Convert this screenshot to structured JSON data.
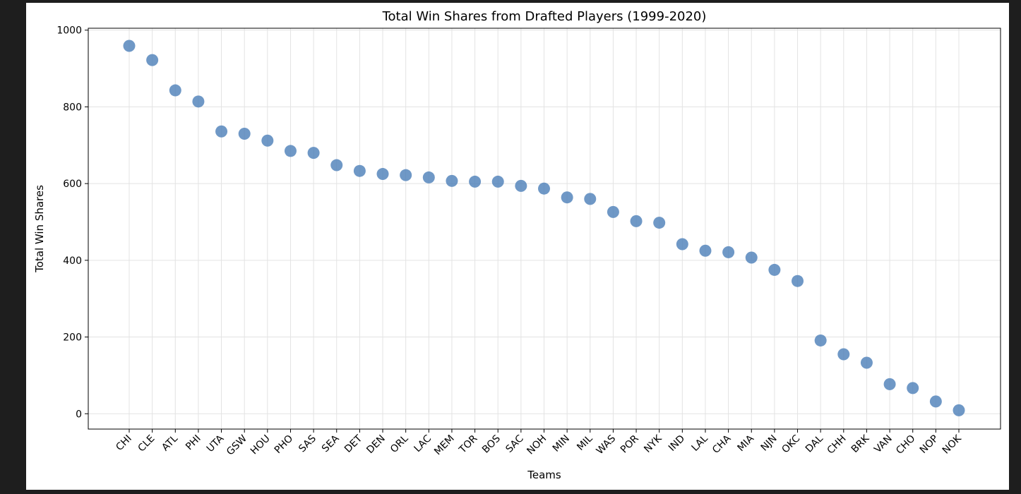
{
  "chart_data": {
    "type": "scatter",
    "title": "Total Win Shares from Drafted Players (1999-2020)",
    "xlabel": "Teams",
    "ylabel": "Total Win Shares",
    "ylim": [
      -40,
      1005
    ],
    "yticks": [
      0,
      200,
      400,
      600,
      800,
      1000
    ],
    "grid": true,
    "marker_color": "#4f81b9",
    "categories": [
      "CHI",
      "CLE",
      "ATL",
      "PHI",
      "UTA",
      "GSW",
      "HOU",
      "PHO",
      "SAS",
      "SEA",
      "DET",
      "DEN",
      "ORL",
      "LAC",
      "MEM",
      "TOR",
      "BOS",
      "SAC",
      "NOH",
      "MIN",
      "MIL",
      "WAS",
      "POR",
      "NYK",
      "IND",
      "LAL",
      "CHA",
      "MIA",
      "NJN",
      "OKC",
      "DAL",
      "CHH",
      "BRK",
      "VAN",
      "CHO",
      "NOP",
      "NOK"
    ],
    "values": [
      959,
      922,
      843,
      814,
      736,
      730,
      712,
      685,
      680,
      648,
      633,
      625,
      622,
      616,
      607,
      605,
      605,
      594,
      587,
      564,
      560,
      526,
      502,
      498,
      442,
      425,
      421,
      407,
      375,
      346,
      191,
      155,
      133,
      77,
      67,
      32,
      9
    ]
  }
}
